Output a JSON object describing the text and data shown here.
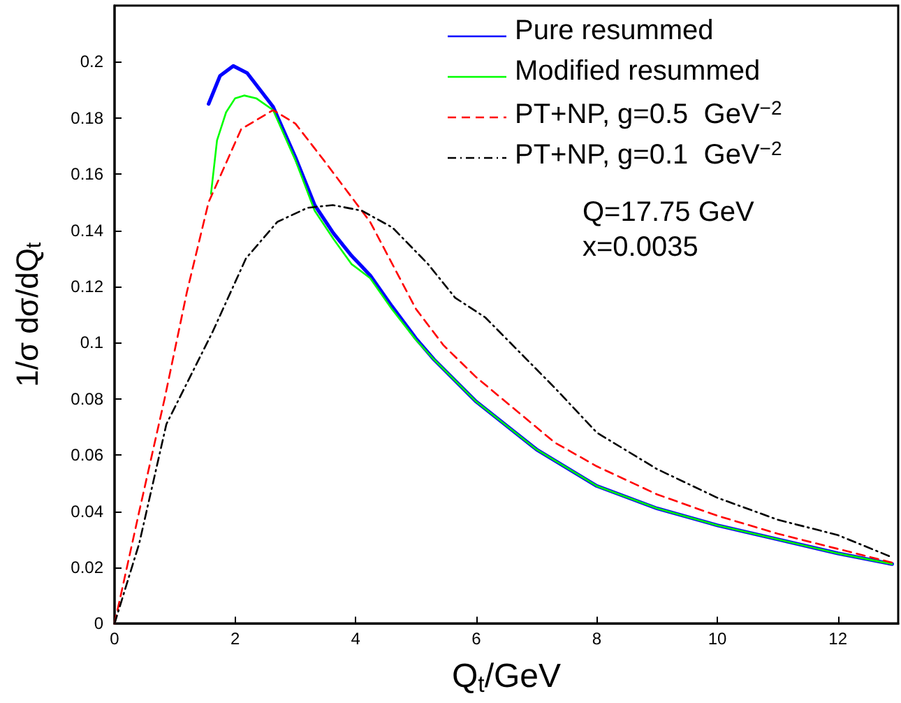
{
  "chart_data": {
    "type": "line",
    "xlabel": "Q$_{t}$/GeV",
    "ylabel": "1/σ dσ/dQ$_{t}$",
    "xlim": [
      0,
      13
    ],
    "xticks": [
      0,
      2,
      4,
      6,
      8,
      10,
      12
    ],
    "ylim": [
      0,
      0.22
    ],
    "yticks": [
      0,
      0.02,
      0.04,
      0.06,
      0.08,
      0.1,
      0.12,
      0.14,
      0.16,
      0.18,
      0.2
    ],
    "grid": false,
    "legend": "top right",
    "marker": "none",
    "annotations": [
      "Q=17.75 GeV",
      "x=0.0035"
    ],
    "series": [
      {
        "name": "Pure resummed",
        "color": "#0000ff",
        "line_style": "solid",
        "x": [
          1.56,
          1.75,
          1.97,
          2.2,
          2.63,
          3.0,
          3.32,
          3.63,
          3.93,
          4.24,
          4.6,
          5.0,
          5.3,
          6.0,
          7.0,
          8.0,
          9.0,
          10.0,
          11.0,
          12.0,
          12.9
        ],
        "values": [
          0.185,
          0.195,
          0.1985,
          0.196,
          0.184,
          0.166,
          0.149,
          0.139,
          0.131,
          0.124,
          0.113,
          0.1015,
          0.094,
          0.079,
          0.062,
          0.049,
          0.041,
          0.035,
          0.03,
          0.025,
          0.0212
        ]
      },
      {
        "name": "Modified resummed",
        "color": "#00ff00",
        "line_style": "solid",
        "x": [
          1.6,
          1.7,
          1.85,
          2.0,
          2.15,
          2.35,
          2.63,
          3.0,
          3.32,
          3.63,
          3.93,
          4.24,
          4.6,
          5.0,
          5.3,
          6.0,
          7.0,
          8.0,
          9.0,
          10.0,
          11.0,
          12.0,
          12.9
        ],
        "values": [
          0.153,
          0.172,
          0.182,
          0.187,
          0.188,
          0.187,
          0.1828,
          0.165,
          0.147,
          0.137,
          0.128,
          0.123,
          0.112,
          0.101,
          0.094,
          0.079,
          0.062,
          0.049,
          0.041,
          0.035,
          0.03,
          0.025,
          0.0212
        ]
      },
      {
        "name": "PT+NP, g=0.5  GeV$^{−2}$",
        "color": "#ff0000",
        "line_style": "dashed",
        "x": [
          0,
          0.41,
          0.83,
          1.2,
          1.56,
          2.1,
          2.63,
          3.0,
          3.47,
          4.24,
          5.0,
          5.46,
          6.0,
          7.3,
          8.0,
          9.0,
          10.0,
          11.0,
          12.0,
          12.9
        ],
        "values": [
          0,
          0.04,
          0.08,
          0.118,
          0.15,
          0.176,
          0.1828,
          0.178,
          0.165,
          0.143,
          0.112,
          0.099,
          0.0877,
          0.0645,
          0.056,
          0.046,
          0.0384,
          0.032,
          0.0266,
          0.0217
        ]
      },
      {
        "name": "PT+NP, g=0.1  GeV$^{−2}$",
        "color": "#000000",
        "line_style": "dashdot",
        "x": [
          0,
          0.41,
          0.86,
          1.63,
          2.18,
          2.7,
          3.2,
          3.62,
          4.1,
          4.61,
          5.2,
          5.65,
          6.15,
          7.3,
          8.0,
          9.0,
          10.0,
          11.0,
          12.0,
          12.9
        ],
        "values": [
          0,
          0.0286,
          0.071,
          0.104,
          0.13,
          0.143,
          0.148,
          0.149,
          0.147,
          0.141,
          0.128,
          0.116,
          0.109,
          0.084,
          0.068,
          0.055,
          0.0448,
          0.037,
          0.0315,
          0.0236
        ]
      }
    ]
  }
}
